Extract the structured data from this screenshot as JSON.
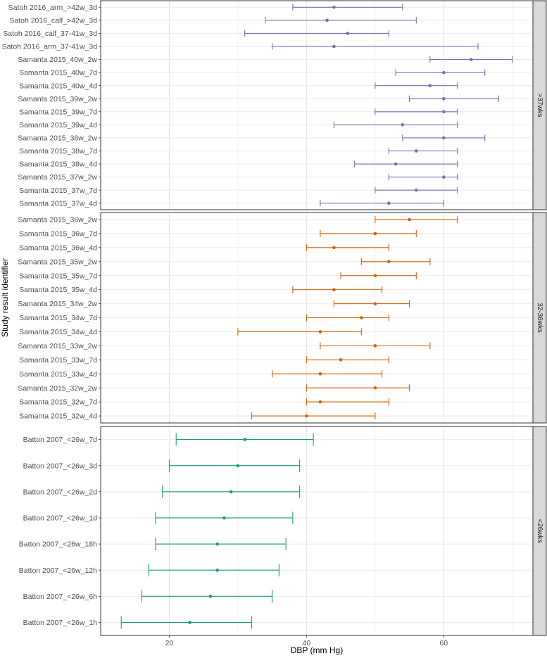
{
  "chart_data": {
    "type": "forest",
    "xlabel": "DBP (mm Hg)",
    "ylabel": "Study result identifier",
    "xlim": [
      10,
      73
    ],
    "xticks": [
      20,
      40,
      60
    ],
    "grid": true,
    "panels": [
      {
        "label": ">37wks",
        "color": "#7570b3",
        "rows": [
          {
            "label": "Satoh 2016_arm_>42w_3d",
            "mean": 44,
            "low": 38,
            "high": 54
          },
          {
            "label": "Satoh 2016_calf_>42w_3d",
            "mean": 43,
            "low": 34,
            "high": 56
          },
          {
            "label": "Satoh 2016_calf_37-41w_3d",
            "mean": 46,
            "low": 31,
            "high": 52
          },
          {
            "label": "Satoh 2016_arm_37-41w_3d",
            "mean": 44,
            "low": 35,
            "high": 65
          },
          {
            "label": "Samanta 2015_40w_2w",
            "mean": 64,
            "low": 58,
            "high": 70
          },
          {
            "label": "Samanta 2015_40w_7d",
            "mean": 60,
            "low": 53,
            "high": 66
          },
          {
            "label": "Samanta 2015_40w_4d",
            "mean": 58,
            "low": 50,
            "high": 62
          },
          {
            "label": "Samanta 2015_39w_2w",
            "mean": 60,
            "low": 55,
            "high": 68
          },
          {
            "label": "Samanta 2015_39w_7d",
            "mean": 60,
            "low": 50,
            "high": 62
          },
          {
            "label": "Samanta 2015_39w_4d",
            "mean": 54,
            "low": 44,
            "high": 62
          },
          {
            "label": "Samanta 2015_38w_2w",
            "mean": 60,
            "low": 54,
            "high": 66
          },
          {
            "label": "Samanta 2015_38w_7d",
            "mean": 56,
            "low": 52,
            "high": 62
          },
          {
            "label": "Samanta 2015_38w_4d",
            "mean": 53,
            "low": 47,
            "high": 62
          },
          {
            "label": "Samanta 2015_37w_2w",
            "mean": 60,
            "low": 52,
            "high": 62
          },
          {
            "label": "Samanta 2015_37w_7d",
            "mean": 56,
            "low": 50,
            "high": 62
          },
          {
            "label": "Samanta 2015_37w_4d",
            "mean": 52,
            "low": 42,
            "high": 60
          }
        ]
      },
      {
        "label": "32-36wks",
        "color": "#d95f02",
        "rows": [
          {
            "label": "Samanta 2015_36w_2w",
            "mean": 55,
            "low": 50,
            "high": 62
          },
          {
            "label": "Samanta 2015_36w_7d",
            "mean": 50,
            "low": 42,
            "high": 56
          },
          {
            "label": "Samanta 2015_36w_4d",
            "mean": 44,
            "low": 40,
            "high": 52
          },
          {
            "label": "Samanta 2015_35w_2w",
            "mean": 52,
            "low": 48,
            "high": 58
          },
          {
            "label": "Samanta 2015_35w_7d",
            "mean": 50,
            "low": 45,
            "high": 56
          },
          {
            "label": "Samanta 2015_35w_4d",
            "mean": 44,
            "low": 38,
            "high": 51
          },
          {
            "label": "Samanta 2015_34w_2w",
            "mean": 50,
            "low": 44,
            "high": 55
          },
          {
            "label": "Samanta 2015_34w_7d",
            "mean": 48,
            "low": 40,
            "high": 52
          },
          {
            "label": "Samanta 2015_34w_4d",
            "mean": 42,
            "low": 30,
            "high": 48
          },
          {
            "label": "Samanta 2015_33w_2w",
            "mean": 50,
            "low": 42,
            "high": 58
          },
          {
            "label": "Samanta 2015_33w_7d",
            "mean": 45,
            "low": 40,
            "high": 52
          },
          {
            "label": "Samanta 2015_33w_4d",
            "mean": 42,
            "low": 35,
            "high": 51
          },
          {
            "label": "Samanta 2015_32w_2w",
            "mean": 50,
            "low": 40,
            "high": 55
          },
          {
            "label": "Samanta 2015_32w_7d",
            "mean": 42,
            "low": 40,
            "high": 52
          },
          {
            "label": "Samanta 2015_32w_4d",
            "mean": 40,
            "low": 32,
            "high": 50
          }
        ]
      },
      {
        "label": "<26wks",
        "color": "#1b9e77",
        "rows": [
          {
            "label": "Batton 2007_<26w_7d",
            "mean": 31,
            "low": 21,
            "high": 41
          },
          {
            "label": "Batton 2007_<26w_3d",
            "mean": 30,
            "low": 20,
            "high": 39
          },
          {
            "label": "Batton 2007_<26w_2d",
            "mean": 29,
            "low": 19,
            "high": 39
          },
          {
            "label": "Batton 2007_<26w_1d",
            "mean": 28,
            "low": 18,
            "high": 38
          },
          {
            "label": "Batton 2007_<26w_18h",
            "mean": 27,
            "low": 18,
            "high": 37
          },
          {
            "label": "Batton 2007_<26w_12h",
            "mean": 27,
            "low": 17,
            "high": 36
          },
          {
            "label": "Batton 2007_<26w_6h",
            "mean": 26,
            "low": 16,
            "high": 35
          },
          {
            "label": "Batton 2007_<26w_1h",
            "mean": 23,
            "low": 13,
            "high": 32
          }
        ]
      }
    ]
  }
}
